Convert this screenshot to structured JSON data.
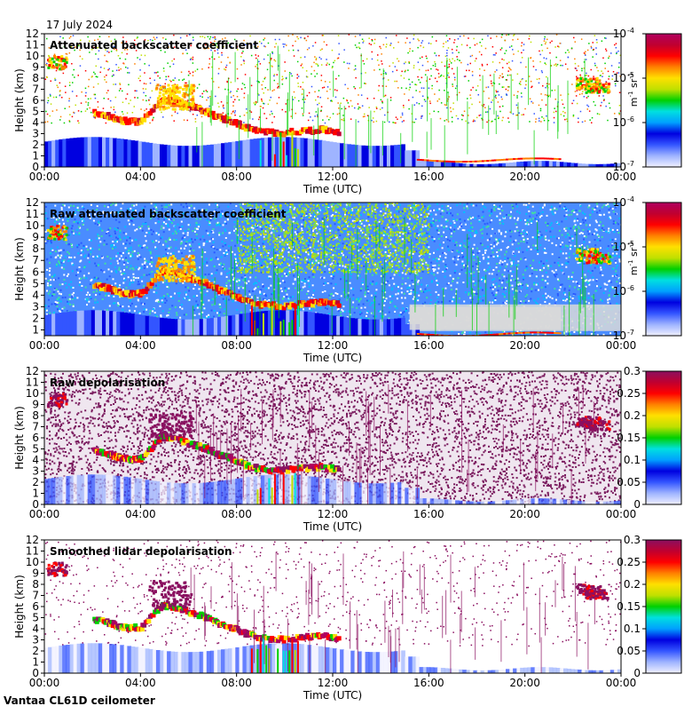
{
  "date_label": "17 July 2024",
  "footer_label": "Vantaa CL61D ceilometer",
  "colors": {
    "background": "#ffffff",
    "frame": "#000000",
    "noise_gray": "#d9d9d9",
    "depol_noise": "#7a1a5e"
  },
  "colorbar_backscatter": {
    "ticks": [
      {
        "base": "10",
        "exp": "-4"
      },
      {
        "base": "10",
        "exp": "-5"
      },
      {
        "base": "10",
        "exp": "-6"
      },
      {
        "base": "10",
        "exp": "-7"
      }
    ],
    "unit_m": "m",
    "unit_m_exp": "-1",
    "unit_sr": " sr",
    "unit_sr_exp": "-1",
    "colors": [
      "#f0f0ff",
      "#9fb4ff",
      "#3355ff",
      "#0000e0",
      "#00a0ff",
      "#00e0e0",
      "#00d000",
      "#c0e000",
      "#ffe000",
      "#ff8000",
      "#ff0000",
      "#c00030",
      "#b00060"
    ]
  },
  "colorbar_depol": {
    "ticks": [
      "0.3",
      "0.25",
      "0.2",
      "0.15",
      "0.1",
      "0.05",
      "0"
    ],
    "colors": [
      "#f0f0ff",
      "#9fb4ff",
      "#3355ff",
      "#0000e0",
      "#00a0ff",
      "#00e0e0",
      "#00d000",
      "#c0e000",
      "#ffe000",
      "#ff8000",
      "#ff0000",
      "#c00030",
      "#8a1060"
    ]
  },
  "chart_data": [
    {
      "type": "heatmap",
      "title": "Attenuated backscatter coefficient",
      "xlabel": "Time (UTC)",
      "ylabel": "Height (km)",
      "xticks": [
        "00:00",
        "04:00",
        "08:00",
        "12:00",
        "16:00",
        "20:00",
        "00:00"
      ],
      "yticks": [
        "0",
        "1",
        "2",
        "3",
        "4",
        "5",
        "6",
        "7",
        "8",
        "9",
        "10",
        "11",
        "12"
      ],
      "ylim": [
        0,
        12
      ],
      "x_range_hours": [
        0,
        24
      ],
      "colorbar": "backscatter",
      "variant": "smoothed_backscatter"
    },
    {
      "type": "heatmap",
      "title": "Raw attenuated backscatter coefficient",
      "xlabel": "Time (UTC)",
      "ylabel": "Height (km)",
      "xticks": [
        "00:00",
        "04:00",
        "08:00",
        "12:00",
        "16:00",
        "20:00",
        "00:00"
      ],
      "yticks": [
        "1",
        "2",
        "3",
        "4",
        "5",
        "6",
        "7",
        "8",
        "9",
        "10",
        "11",
        "12"
      ],
      "ylim": [
        0.5,
        12
      ],
      "x_range_hours": [
        0,
        24
      ],
      "colorbar": "backscatter",
      "variant": "raw_backscatter"
    },
    {
      "type": "heatmap",
      "title": "Raw depolarisation",
      "xlabel": "Time (UTC)",
      "ylabel": "Height (km)",
      "xticks": [
        "00:00",
        "04:00",
        "08:00",
        "12:00",
        "16:00",
        "20:00",
        "00:00"
      ],
      "yticks": [
        "0",
        "1",
        "2",
        "3",
        "4",
        "5",
        "6",
        "7",
        "8",
        "9",
        "10",
        "11",
        "12"
      ],
      "ylim": [
        0,
        12
      ],
      "x_range_hours": [
        0,
        24
      ],
      "colorbar": "depol",
      "variant": "raw_depol"
    },
    {
      "type": "heatmap",
      "title": "Smoothed lidar depolarisation",
      "xlabel": "Time (UTC)",
      "ylabel": "Height (km)",
      "xticks": [
        "00:00",
        "04:00",
        "08:00",
        "12:00",
        "16:00",
        "20:00",
        "00:00"
      ],
      "yticks": [
        "0",
        "1",
        "2",
        "3",
        "4",
        "5",
        "6",
        "7",
        "8",
        "9",
        "10",
        "11",
        "12"
      ],
      "ylim": [
        0,
        12
      ],
      "x_range_hours": [
        0,
        24
      ],
      "colorbar": "depol",
      "variant": "smoothed_depol"
    }
  ]
}
